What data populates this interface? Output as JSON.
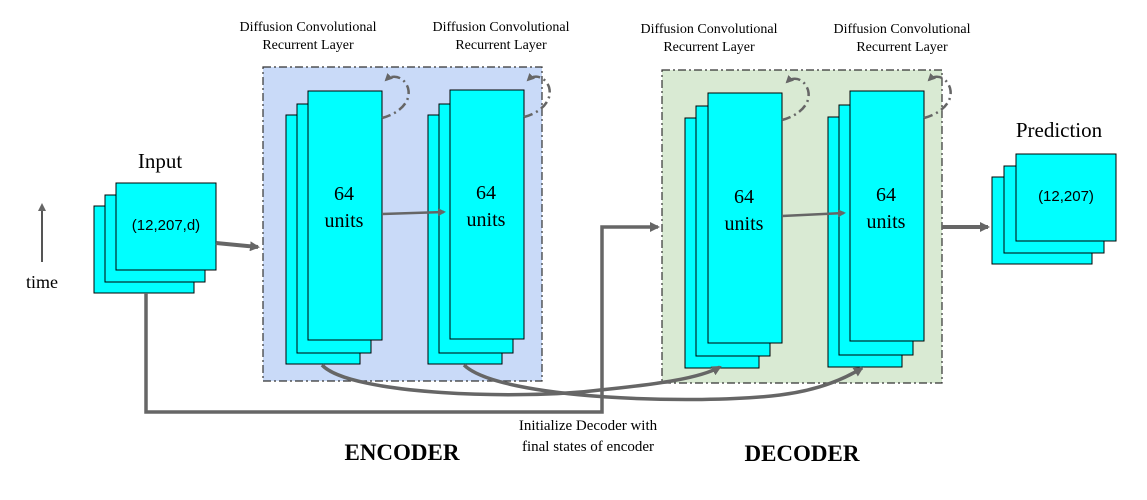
{
  "input": {
    "title": "Input",
    "shape": "(12,207,d)"
  },
  "time_label": "time",
  "layers": [
    {
      "title_line1": "Diffusion Convolutional",
      "title_line2": "Recurrent Layer",
      "units_number": "64",
      "units_word": "units"
    },
    {
      "title_line1": "Diffusion Convolutional",
      "title_line2": "Recurrent Layer",
      "units_number": "64",
      "units_word": "units"
    },
    {
      "title_line1": "Diffusion Convolutional",
      "title_line2": "Recurrent Layer",
      "units_number": "64",
      "units_word": "units"
    },
    {
      "title_line1": "Diffusion Convolutional",
      "title_line2": "Recurrent Layer",
      "units_number": "64",
      "units_word": "units"
    }
  ],
  "prediction": {
    "title": "Prediction",
    "shape": "(12,207)"
  },
  "init_note": {
    "line1": "Initialize Decoder with",
    "line2": "final states of encoder"
  },
  "encoder_label": "ENCODER",
  "decoder_label": "DECODER",
  "colors": {
    "cell": "#00ffff",
    "encoder_bg": "#c9daf8",
    "decoder_bg": "#d9ead3",
    "arrow": "#666666",
    "border": "#000000"
  }
}
